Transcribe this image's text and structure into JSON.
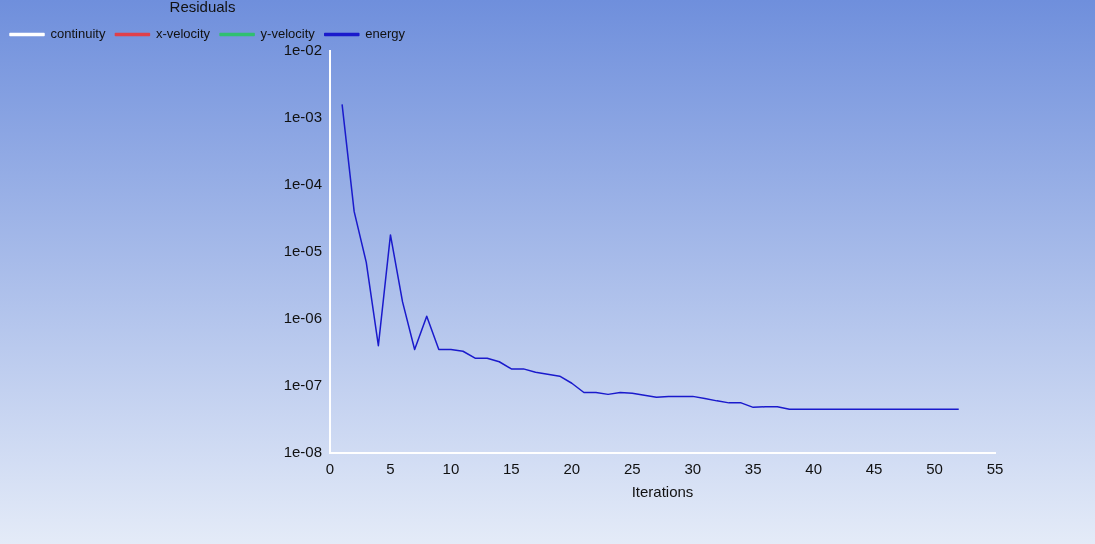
{
  "chart_data": {
    "type": "line",
    "xlabel": "Iterations",
    "legend_title": "Residuals",
    "legend": "top left",
    "log": "y",
    "grid": false,
    "marker": "none",
    "xlim": [
      0,
      55
    ],
    "xticks": [
      0,
      5,
      10,
      15,
      20,
      25,
      30,
      35,
      40,
      45,
      50,
      55
    ],
    "ylim": [
      1e-08,
      0.01
    ],
    "yticks": [
      {
        "value": 1e-08,
        "label": "1e-08"
      },
      {
        "value": 1e-07,
        "label": "1e-07"
      },
      {
        "value": 1e-06,
        "label": "1e-06"
      },
      {
        "value": 1e-05,
        "label": "1e-05"
      },
      {
        "value": 0.0001,
        "label": "1e-04"
      },
      {
        "value": 0.001,
        "label": "1e-03"
      },
      {
        "value": 0.01,
        "label": "1e-02"
      }
    ],
    "x": [
      1,
      2,
      3,
      4,
      5,
      6,
      7,
      8,
      9,
      10,
      11,
      12,
      13,
      14,
      15,
      16,
      17,
      18,
      19,
      20,
      21,
      22,
      23,
      24,
      25,
      26,
      27,
      28,
      29,
      30,
      31,
      32,
      33,
      34,
      35,
      36,
      37,
      38,
      40,
      45,
      50,
      52
    ],
    "series": [
      {
        "name": "continuity",
        "color": "#ffffff",
        "values": [
          null,
          null,
          null,
          null,
          null,
          null,
          null,
          null,
          null,
          null,
          null,
          null,
          null,
          null,
          null,
          null,
          null,
          null,
          null,
          null,
          null,
          null,
          null,
          null,
          null,
          null,
          null,
          null,
          null,
          null,
          null,
          null,
          null,
          null,
          null,
          null,
          null,
          null,
          null,
          null,
          null,
          null
        ]
      },
      {
        "name": "x-velocity",
        "color": "#e0404a",
        "values": [
          null,
          null,
          null,
          null,
          null,
          null,
          null,
          null,
          null,
          null,
          null,
          null,
          null,
          null,
          null,
          null,
          null,
          null,
          null,
          null,
          null,
          null,
          null,
          null,
          null,
          null,
          null,
          null,
          null,
          null,
          null,
          null,
          null,
          null,
          null,
          null,
          null,
          null,
          null,
          null,
          null,
          null
        ]
      },
      {
        "name": "y-velocity",
        "color": "#30c070",
        "values": [
          null,
          null,
          null,
          null,
          null,
          null,
          null,
          null,
          null,
          null,
          null,
          null,
          null,
          null,
          null,
          null,
          null,
          null,
          null,
          null,
          null,
          null,
          null,
          null,
          null,
          null,
          null,
          null,
          null,
          null,
          null,
          null,
          null,
          null,
          null,
          null,
          null,
          null,
          null,
          null,
          null,
          null
        ]
      },
      {
        "name": "energy",
        "color": "#1a1acc",
        "values": [
          0.0016,
          4e-05,
          7e-06,
          4e-07,
          1.8e-05,
          1.8e-06,
          3.5e-07,
          1.1e-06,
          3.5e-07,
          3.5e-07,
          3.3e-07,
          2.6e-07,
          2.6e-07,
          2.3e-07,
          1.8e-07,
          1.8e-07,
          1.6e-07,
          1.5e-07,
          1.4e-07,
          1.1e-07,
          8e-08,
          8e-08,
          7.5e-08,
          8e-08,
          7.8e-08,
          7.3e-08,
          6.8e-08,
          7e-08,
          7e-08,
          7e-08,
          6.5e-08,
          6e-08,
          5.6e-08,
          5.6e-08,
          4.8e-08,
          4.9e-08,
          4.9e-08,
          4.5e-08,
          4.5e-08,
          4.5e-08,
          4.5e-08,
          4.5e-08
        ]
      }
    ]
  }
}
